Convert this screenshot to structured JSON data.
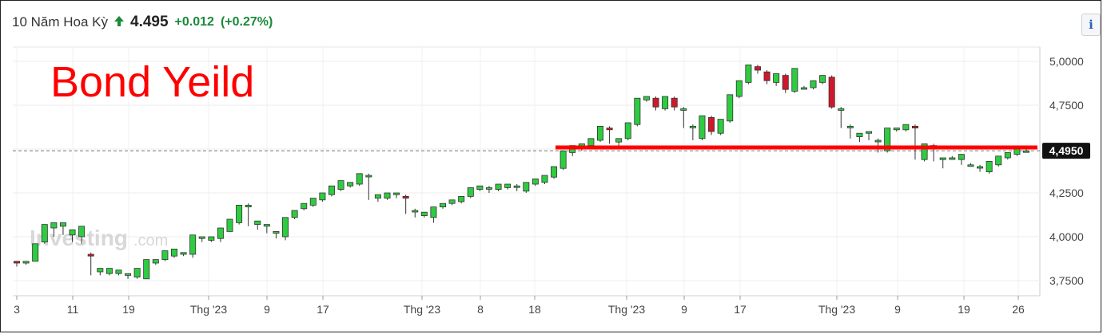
{
  "header": {
    "name": "10 Năm Hoa Kỳ",
    "arrow_icon": "up-arrow-icon",
    "price": "4.495",
    "change": "+0.012",
    "change_pct": "(+0.27%)",
    "color_up": "#1a8a3a"
  },
  "info_button": {
    "label": "i"
  },
  "overlay": {
    "title": "Bond Yeild",
    "color": "#ff0000"
  },
  "watermark": {
    "brand": "Investing",
    "suffix": ".com"
  },
  "chart_data": {
    "type": "candlestick",
    "yticks": [
      "5,0000",
      "4,7500",
      "4,5000",
      "4,2500",
      "4,0000",
      "3,7500"
    ],
    "ytick_values": [
      5.0,
      4.75,
      4.5,
      4.25,
      4.0,
      3.75
    ],
    "ylim": [
      3.69,
      5.05
    ],
    "xticks": [
      "3",
      "11",
      "19",
      "Thg '23",
      "9",
      "17",
      "Thg '23",
      "8",
      "18",
      "Thg '23",
      "9",
      "17",
      "Thg '23",
      "9",
      "19",
      "26"
    ],
    "current_value_label": "4,4950",
    "current_value": 4.495,
    "support_line": 4.5,
    "colors": {
      "up": "#2ecc40",
      "down": "#d0182b",
      "support": "#ff0000",
      "label_bg": "#111111"
    },
    "candles": [
      [
        3.86,
        3.86,
        3.85,
        3.83
      ],
      [
        3.85,
        3.86,
        3.86,
        3.84
      ],
      [
        3.86,
        3.88,
        3.96,
        3.86
      ],
      [
        3.97,
        3.98,
        4.07,
        3.96
      ],
      [
        4.05,
        4.06,
        4.08,
        4.0
      ],
      [
        4.06,
        4.07,
        4.08,
        4.01
      ],
      [
        4.01,
        4.02,
        4.04,
        3.97
      ],
      [
        4.0,
        3.98,
        4.06,
        3.96
      ],
      [
        3.9,
        3.91,
        3.89,
        3.78
      ],
      [
        3.8,
        3.81,
        3.82,
        3.78
      ],
      [
        3.79,
        3.8,
        3.82,
        3.78
      ],
      [
        3.79,
        3.8,
        3.81,
        3.78
      ],
      [
        3.78,
        3.79,
        3.79,
        3.76
      ],
      [
        3.77,
        3.78,
        3.82,
        3.76
      ],
      [
        3.76,
        3.77,
        3.87,
        3.76
      ],
      [
        3.85,
        3.87,
        3.87,
        3.84
      ],
      [
        3.87,
        3.89,
        3.92,
        3.86
      ],
      [
        3.89,
        3.9,
        3.93,
        3.88
      ],
      [
        3.9,
        3.91,
        3.91,
        3.89
      ],
      [
        3.9,
        3.9,
        4.01,
        3.88
      ],
      [
        3.99,
        4.0,
        4.0,
        3.97
      ],
      [
        3.98,
        3.99,
        4.0,
        3.97
      ],
      [
        3.99,
        4.0,
        4.05,
        3.97
      ],
      [
        4.03,
        4.04,
        4.1,
        4.03
      ],
      [
        4.08,
        4.09,
        4.18,
        4.07
      ],
      [
        4.17,
        4.19,
        4.18,
        4.06
      ],
      [
        4.07,
        4.08,
        4.09,
        4.04
      ],
      [
        4.06,
        4.07,
        4.07,
        4.02
      ],
      [
        4.02,
        4.03,
        4.03,
        3.99
      ],
      [
        4.0,
        4.01,
        4.11,
        3.98
      ],
      [
        4.11,
        4.12,
        4.15,
        4.1
      ],
      [
        4.16,
        4.17,
        4.19,
        4.15
      ],
      [
        4.18,
        4.19,
        4.22,
        4.17
      ],
      [
        4.21,
        4.22,
        4.25,
        4.2
      ],
      [
        4.24,
        4.25,
        4.29,
        4.23
      ],
      [
        4.27,
        4.28,
        4.32,
        4.26
      ],
      [
        4.29,
        4.3,
        4.31,
        4.28
      ],
      [
        4.3,
        4.31,
        4.36,
        4.29
      ],
      [
        4.35,
        4.36,
        4.35,
        4.21
      ],
      [
        4.22,
        4.23,
        4.24,
        4.2
      ],
      [
        4.22,
        4.23,
        4.25,
        4.21
      ],
      [
        4.24,
        4.25,
        4.25,
        4.22
      ],
      [
        4.23,
        4.24,
        4.22,
        4.13
      ],
      [
        4.15,
        4.16,
        4.15,
        4.11
      ],
      [
        4.12,
        4.13,
        4.14,
        4.11
      ],
      [
        4.11,
        4.12,
        4.17,
        4.08
      ],
      [
        4.17,
        4.18,
        4.19,
        4.16
      ],
      [
        4.19,
        4.2,
        4.21,
        4.18
      ],
      [
        4.2,
        4.21,
        4.23,
        4.19
      ],
      [
        4.23,
        4.24,
        4.28,
        4.22
      ],
      [
        4.27,
        4.28,
        4.29,
        4.26
      ],
      [
        4.28,
        4.29,
        4.28,
        4.25
      ],
      [
        4.27,
        4.28,
        4.3,
        4.26
      ],
      [
        4.28,
        4.29,
        4.3,
        4.27
      ],
      [
        4.29,
        4.3,
        4.29,
        4.26
      ],
      [
        4.26,
        4.27,
        4.31,
        4.25
      ],
      [
        4.3,
        4.31,
        4.33,
        4.29
      ],
      [
        4.31,
        4.32,
        4.35,
        4.3
      ],
      [
        4.34,
        4.35,
        4.4,
        4.33
      ],
      [
        4.39,
        4.4,
        4.49,
        4.38
      ],
      [
        4.48,
        4.49,
        4.52,
        4.46
      ],
      [
        4.51,
        4.52,
        4.53,
        4.49
      ],
      [
        4.52,
        4.53,
        4.56,
        4.51
      ],
      [
        4.55,
        4.56,
        4.63,
        4.54
      ],
      [
        4.62,
        4.63,
        4.61,
        4.53
      ],
      [
        4.54,
        4.55,
        4.56,
        4.52
      ],
      [
        4.56,
        4.57,
        4.65,
        4.55
      ],
      [
        4.64,
        4.65,
        4.79,
        4.63
      ],
      [
        4.78,
        4.79,
        4.8,
        4.77
      ],
      [
        4.79,
        4.8,
        4.74,
        4.72
      ],
      [
        4.73,
        4.74,
        4.8,
        4.72
      ],
      [
        4.79,
        4.8,
        4.74,
        4.72
      ],
      [
        4.73,
        4.74,
        4.73,
        4.62
      ],
      [
        4.63,
        4.64,
        4.63,
        4.55
      ],
      [
        4.56,
        4.57,
        4.69,
        4.55
      ],
      [
        4.68,
        4.69,
        4.6,
        4.58
      ],
      [
        4.59,
        4.6,
        4.67,
        4.58
      ],
      [
        4.66,
        4.67,
        4.81,
        4.65
      ],
      [
        4.8,
        4.81,
        4.89,
        4.79
      ],
      [
        4.88,
        4.89,
        4.98,
        4.87
      ],
      [
        4.97,
        4.98,
        4.95,
        4.93
      ],
      [
        4.94,
        4.95,
        4.89,
        4.87
      ],
      [
        4.88,
        4.89,
        4.93,
        4.86
      ],
      [
        4.92,
        4.93,
        4.84,
        4.82
      ],
      [
        4.83,
        4.84,
        4.96,
        4.82
      ],
      [
        4.85,
        4.86,
        4.85,
        4.84
      ],
      [
        4.85,
        4.86,
        4.89,
        4.84
      ],
      [
        4.88,
        4.89,
        4.92,
        4.87
      ],
      [
        4.91,
        4.92,
        4.74,
        4.73
      ],
      [
        4.73,
        4.74,
        4.73,
        4.62
      ],
      [
        4.63,
        4.64,
        4.63,
        4.56
      ],
      [
        4.57,
        4.58,
        4.59,
        4.54
      ],
      [
        4.59,
        4.6,
        4.6,
        4.55
      ],
      [
        4.55,
        4.56,
        4.55,
        4.48
      ],
      [
        4.49,
        4.5,
        4.62,
        4.48
      ],
      [
        4.61,
        4.62,
        4.62,
        4.6
      ],
      [
        4.61,
        4.62,
        4.64,
        4.6
      ],
      [
        4.63,
        4.64,
        4.62,
        4.44
      ],
      [
        4.44,
        4.45,
        4.53,
        4.43
      ],
      [
        4.52,
        4.53,
        4.51,
        4.43
      ],
      [
        4.44,
        4.45,
        4.45,
        4.39
      ],
      [
        4.45,
        4.46,
        4.45,
        4.44
      ],
      [
        4.44,
        4.45,
        4.47,
        4.41
      ],
      [
        4.41,
        4.42,
        4.41,
        4.4
      ],
      [
        4.4,
        4.41,
        4.4,
        4.37
      ],
      [
        4.37,
        4.38,
        4.43,
        4.36
      ],
      [
        4.41,
        4.42,
        4.46,
        4.4
      ],
      [
        4.45,
        4.46,
        4.48,
        4.44
      ],
      [
        4.47,
        4.48,
        4.5,
        4.46
      ],
      [
        4.49,
        4.5,
        4.49,
        4.48
      ]
    ]
  }
}
